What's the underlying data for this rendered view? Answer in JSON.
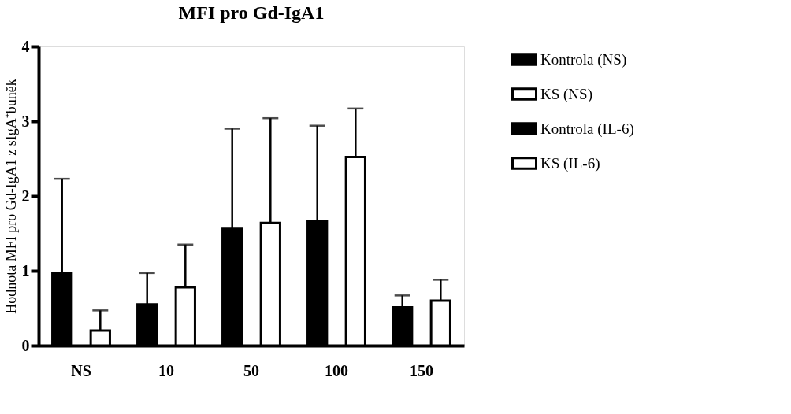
{
  "chart_data": {
    "type": "bar",
    "title": "MFI pro Gd-IgA1",
    "ylabel": "Hodnota MFI pro Gd-IgA1 z sIgA⁺buněk",
    "categories": [
      "NS",
      "10",
      "50",
      "100",
      "150"
    ],
    "series": [
      {
        "name": "Kontrola (NS)",
        "color": "#000000",
        "values": [
          0.97,
          null,
          null,
          null,
          null
        ],
        "errors": [
          [
            0.97,
            2.23
          ],
          null,
          null,
          null,
          null
        ]
      },
      {
        "name": "KS (NS)",
        "color": "#ffffff",
        "values": [
          0.2,
          null,
          null,
          null,
          null
        ],
        "errors": [
          [
            0.2,
            0.47
          ],
          null,
          null,
          null,
          null
        ]
      },
      {
        "name": "Kontrola (IL-6)",
        "color": "#000000",
        "values": [
          null,
          0.55,
          1.56,
          1.66,
          0.51
        ],
        "errors": [
          null,
          [
            0.55,
            0.97
          ],
          [
            1.56,
            2.9
          ],
          [
            1.66,
            2.94
          ],
          [
            0.51,
            0.67
          ]
        ]
      },
      {
        "name": "KS (IL-6)",
        "color": "#ffffff",
        "values": [
          null,
          0.78,
          1.64,
          2.52,
          0.6
        ],
        "errors": [
          null,
          [
            0.78,
            1.35
          ],
          [
            1.64,
            3.04
          ],
          [
            2.52,
            3.17
          ],
          [
            0.6,
            0.88
          ]
        ]
      }
    ],
    "ylim": [
      0,
      4
    ],
    "yticks": [
      0,
      1,
      2,
      3,
      4
    ],
    "grid": false,
    "legend": "right"
  }
}
